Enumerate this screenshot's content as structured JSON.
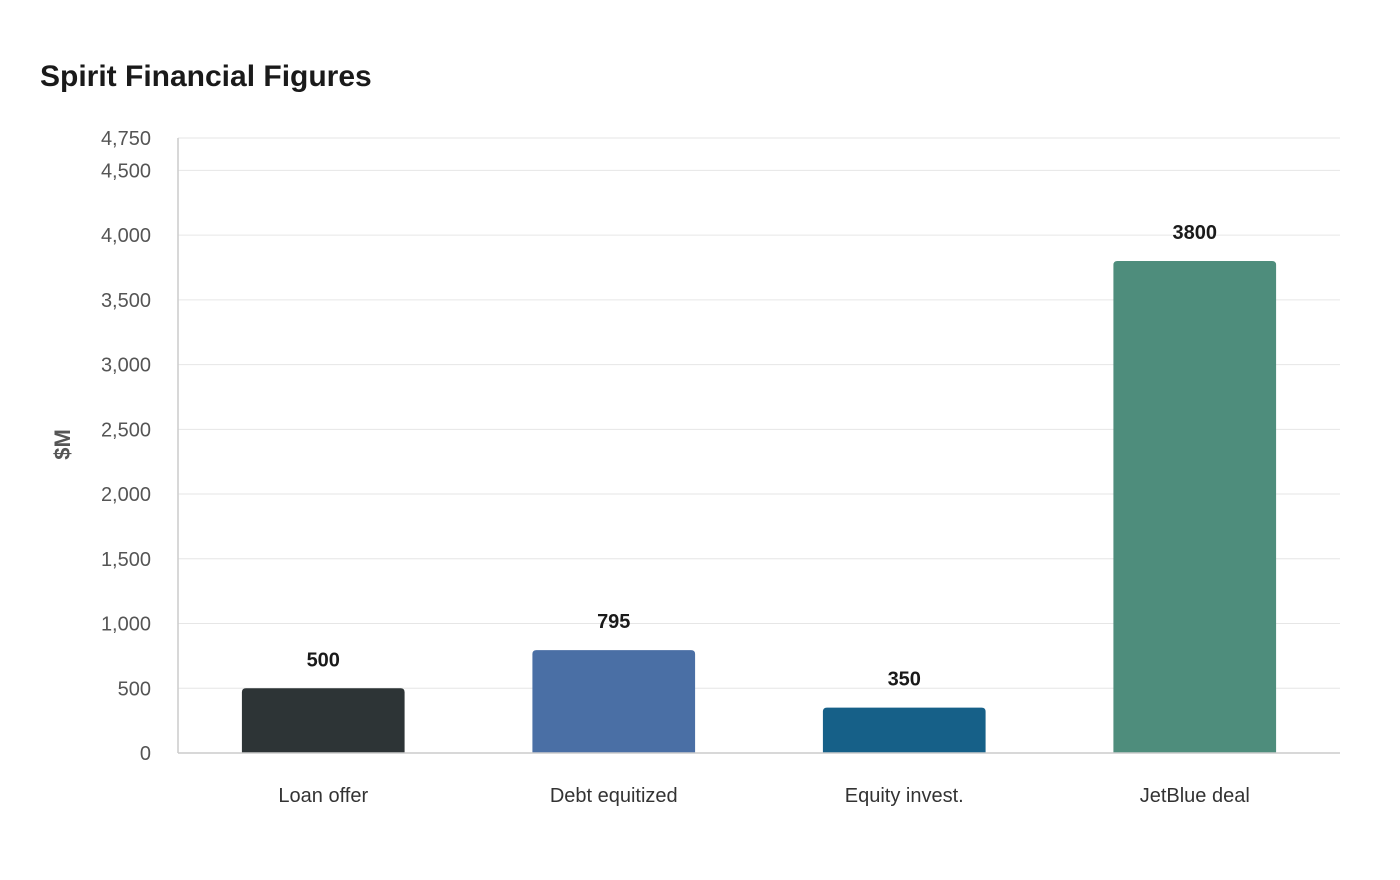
{
  "chart_data": {
    "type": "bar",
    "title": "Spirit Financial Figures",
    "xlabel": "",
    "ylabel": "$M",
    "categories": [
      "Loan offer",
      "Debt equitized",
      "Equity invest.",
      "JetBlue deal"
    ],
    "values": [
      500,
      795,
      350,
      3800
    ],
    "value_labels": [
      "500",
      "795",
      "350",
      "3800"
    ],
    "colors": [
      "#2d3436",
      "#4a6fa5",
      "#166088",
      "#4e8d7c"
    ],
    "ylim": [
      0,
      4750
    ],
    "yticks": [
      0,
      500,
      1000,
      1500,
      2000,
      2500,
      3000,
      3500,
      4000,
      4500,
      4750
    ],
    "ytick_labels": [
      "0",
      "500",
      "1,000",
      "1,500",
      "2,000",
      "2,500",
      "3,000",
      "3,500",
      "4,000",
      "4,500",
      "4,750"
    ],
    "grid": true,
    "legend": "none"
  }
}
